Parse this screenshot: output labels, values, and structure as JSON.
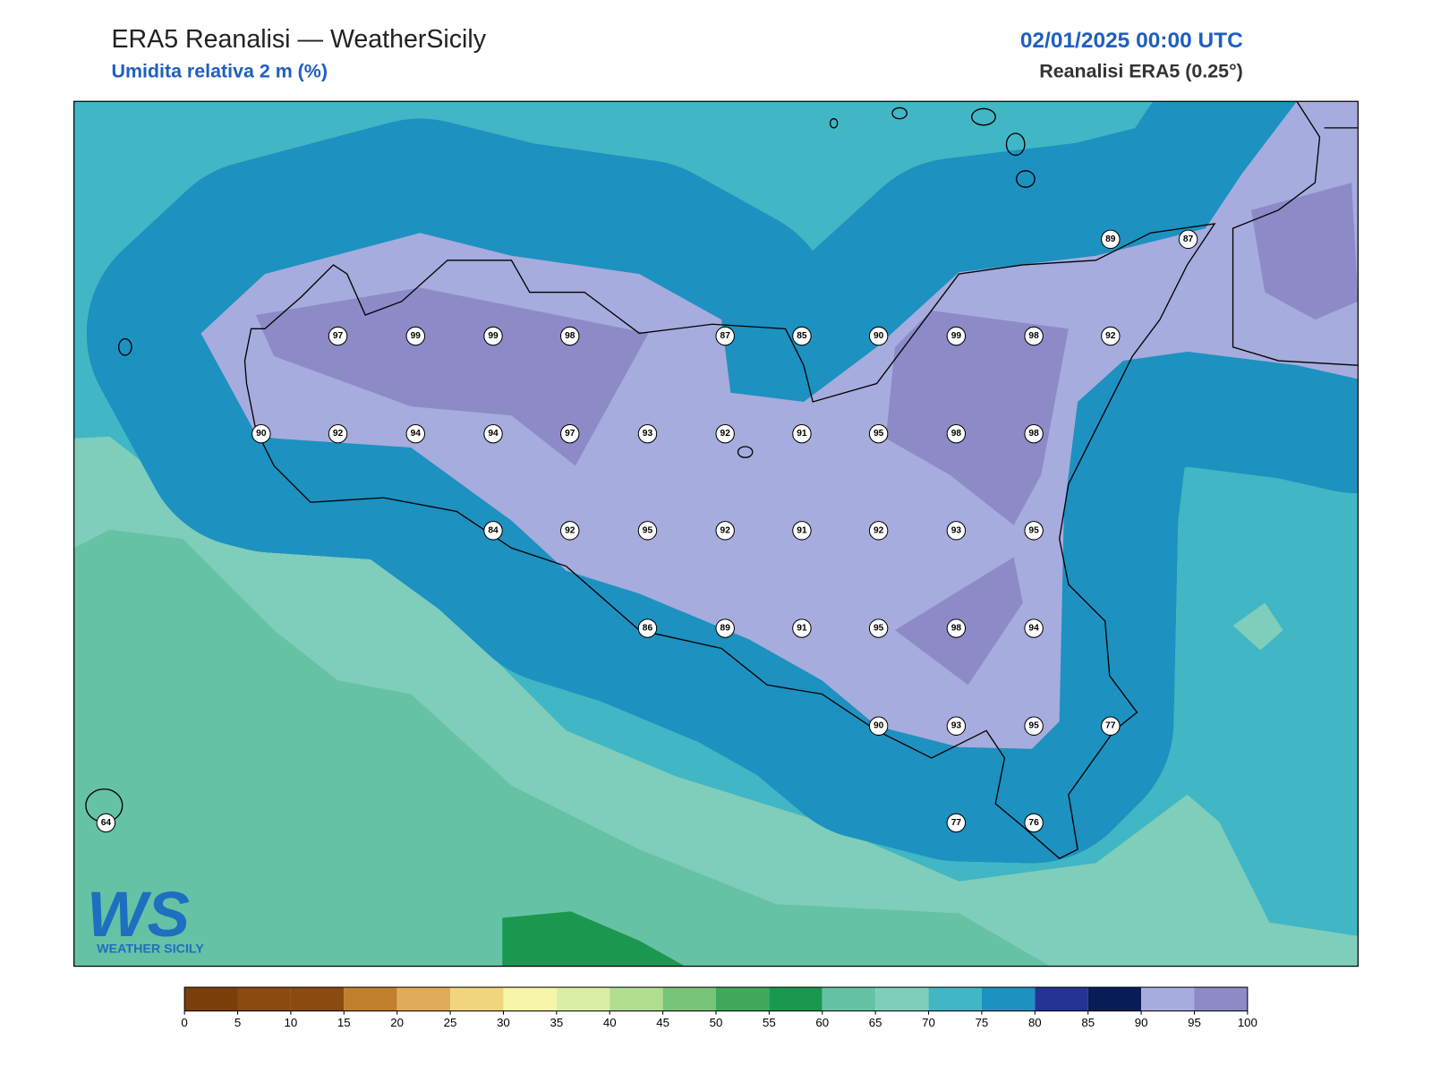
{
  "header": {
    "title": "ERA5 Reanalisi — WeatherSicily",
    "subtitle": "Umidita relativa 2 m (%)",
    "datetime": "02/01/2025 00:00 UTC",
    "source": "Reanalisi ERA5 (0.25°)"
  },
  "stations": [
    97,
    99,
    99,
    98,
    87,
    85,
    90,
    99,
    98,
    92,
    89,
    87,
    90,
    92,
    94,
    94,
    97,
    93,
    92,
    91,
    95,
    98,
    98,
    84,
    92,
    95,
    92,
    91,
    92,
    93,
    95,
    86,
    89,
    91,
    95,
    98,
    94,
    90,
    93,
    95,
    77,
    64,
    77,
    76
  ],
  "colorbar": {
    "ticks": [
      0,
      5,
      10,
      15,
      20,
      25,
      30,
      35,
      40,
      45,
      50,
      55,
      60,
      65,
      70,
      75,
      80,
      85,
      90,
      95,
      100
    ],
    "colors": [
      "#7a3f0a",
      "#8b4a10",
      "#8b4a10",
      "#c07f2c",
      "#e0ac5a",
      "#f0d47e",
      "#f6f5a8",
      "#dbeea6",
      "#b0dd8f",
      "#78c479",
      "#3fa85c",
      "#1a9850",
      "#66c2a5",
      "#7fcdbb",
      "#41b6c4",
      "#1d91c0",
      "#253494",
      "#081d58",
      "#a6acdd",
      "#8e8ac8"
    ]
  },
  "logo": {
    "mark": "WS",
    "name": "WEATHER SICILY"
  }
}
